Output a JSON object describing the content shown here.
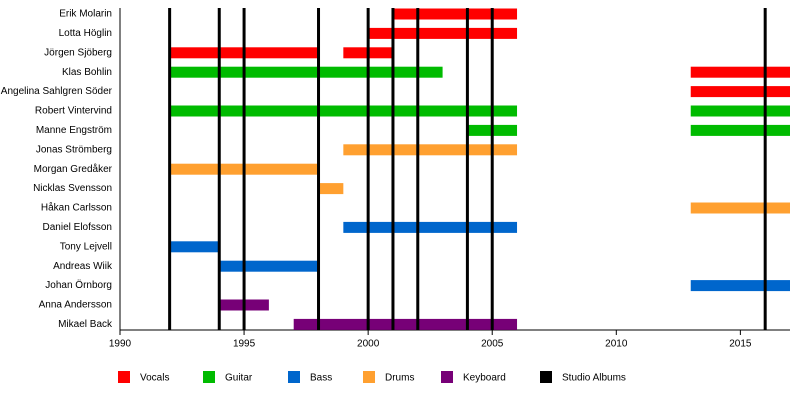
{
  "chart_data": {
    "type": "timeline",
    "categories": [
      "Erik Molarin",
      "Lotta Höglin",
      "Jörgen Sjöberg",
      "Klas Bohlin",
      "Angelina Sahlgren Söder",
      "Robert Vintervind",
      "Manne Engström",
      "Jonas Strömberg",
      "Morgan Gredåker",
      "Nicklas Svensson",
      "Håkan Carlsson",
      "Daniel Elofsson",
      "Tony Lejvell",
      "Andreas Wiik",
      "Johan Örnborg",
      "Anna Andersson",
      "Mikael Back"
    ],
    "series": [
      {
        "name": "Vocals",
        "color": "#ff0000",
        "values": [
          [
            [
              2001,
              2006
            ]
          ],
          [
            [
              2000,
              2006
            ]
          ],
          [
            [
              1992,
              1998
            ],
            [
              1999,
              2001
            ]
          ],
          [
            [
              2013,
              2017
            ]
          ],
          [
            [
              2013,
              2017
            ]
          ],
          [],
          [],
          [],
          [],
          [],
          [],
          [],
          [],
          [],
          [],
          [],
          []
        ]
      },
      {
        "name": "Guitar",
        "color": "#00bb00",
        "values": [
          [],
          [],
          [],
          [
            [
              1992,
              2003
            ]
          ],
          [],
          [
            [
              1992,
              2006
            ],
            [
              2013,
              2017
            ]
          ],
          [
            [
              2004,
              2006
            ],
            [
              2013,
              2017
            ]
          ],
          [],
          [],
          [],
          [],
          [],
          [],
          [],
          [],
          [],
          []
        ]
      },
      {
        "name": "Bass",
        "color": "#0066cc",
        "values": [
          [],
          [],
          [],
          [],
          [],
          [],
          [],
          [],
          [],
          [],
          [],
          [
            [
              1999,
              2006
            ]
          ],
          [
            [
              1992,
              1994
            ]
          ],
          [
            [
              1994,
              1998
            ]
          ],
          [
            [
              2013,
              2017
            ]
          ],
          [],
          []
        ]
      },
      {
        "name": "Drums",
        "color": "#ffa030",
        "values": [
          [],
          [],
          [],
          [],
          [],
          [],
          [],
          [
            [
              1999,
              2006
            ]
          ],
          [
            [
              1992,
              1998
            ]
          ],
          [
            [
              1998,
              1999
            ]
          ],
          [
            [
              2013,
              2017
            ]
          ],
          [],
          [],
          [],
          [],
          [],
          []
        ]
      },
      {
        "name": "Keyboard",
        "color": "#770077",
        "values": [
          [],
          [],
          [],
          [],
          [],
          [],
          [],
          [],
          [],
          [],
          [],
          [],
          [],
          [],
          [],
          [
            [
              1994,
              1996
            ]
          ],
          [
            [
              1997,
              2006
            ]
          ]
        ]
      }
    ],
    "albums": {
      "name": "Studio Albums",
      "color": "#000000",
      "values": [
        1992,
        1994,
        1995,
        1998,
        2000,
        2001,
        2002,
        2004,
        2005,
        2016
      ]
    },
    "xlim": [
      1990,
      2017
    ],
    "xticks": [
      1990,
      1995,
      2000,
      2005,
      2010,
      2015
    ]
  }
}
